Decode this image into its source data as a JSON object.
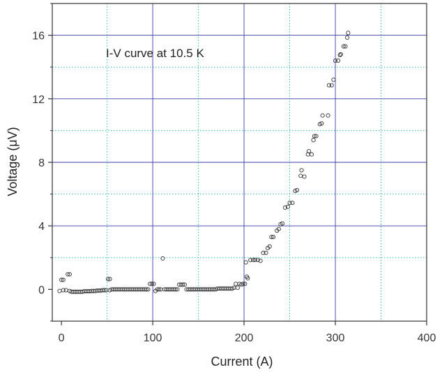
{
  "chart_data": {
    "type": "scatter",
    "title": "",
    "annotation": "I-V curve at 10.5 K",
    "xlabel": "Current (A)",
    "ylabel": "Voltage (μV)",
    "xlim": [
      -10,
      400
    ],
    "ylim": [
      -2,
      18
    ],
    "xticks": [
      0,
      100,
      200,
      300,
      400
    ],
    "yticks": [
      0,
      4,
      8,
      12,
      16
    ],
    "major_grid_x": [
      100,
      200,
      300
    ],
    "major_grid_y": [
      4,
      8,
      12,
      16
    ],
    "minor_grid_x": [
      50,
      150,
      250,
      350
    ],
    "minor_grid_y": [
      2,
      6,
      10,
      14
    ],
    "grid": true,
    "colors": {
      "major_grid": "#3b3ba8",
      "minor_grid": "#36b8a8",
      "marker": "#333333",
      "axis": "#333333"
    },
    "marker": "open-circle",
    "series": [
      {
        "points": [
          [
            -2,
            -0.1
          ],
          [
            0,
            0.6
          ],
          [
            2,
            0.6
          ],
          [
            2,
            -0.05
          ],
          [
            5,
            -0.05
          ],
          [
            7,
            0.95
          ],
          [
            9,
            0.95
          ],
          [
            9,
            -0.1
          ],
          [
            11,
            -0.15
          ],
          [
            13,
            -0.15
          ],
          [
            15,
            -0.15
          ],
          [
            17,
            -0.15
          ],
          [
            19,
            -0.15
          ],
          [
            21,
            -0.15
          ],
          [
            23,
            -0.15
          ],
          [
            25,
            -0.12
          ],
          [
            27,
            -0.12
          ],
          [
            29,
            -0.12
          ],
          [
            31,
            -0.12
          ],
          [
            33,
            -0.1
          ],
          [
            35,
            -0.1
          ],
          [
            37,
            -0.1
          ],
          [
            39,
            -0.08
          ],
          [
            41,
            -0.08
          ],
          [
            43,
            -0.08
          ],
          [
            45,
            -0.05
          ],
          [
            47,
            -0.05
          ],
          [
            49,
            -0.05
          ],
          [
            51,
            0.65
          ],
          [
            53,
            0.65
          ],
          [
            53,
            -0.05
          ],
          [
            55,
            0.0
          ],
          [
            57,
            0.0
          ],
          [
            59,
            0.0
          ],
          [
            61,
            0.0
          ],
          [
            63,
            0.0
          ],
          [
            65,
            0.0
          ],
          [
            67,
            0.0
          ],
          [
            69,
            0.0
          ],
          [
            71,
            0.0
          ],
          [
            73,
            0.0
          ],
          [
            75,
            0.0
          ],
          [
            77,
            0.0
          ],
          [
            79,
            0.0
          ],
          [
            81,
            0.0
          ],
          [
            83,
            0.0
          ],
          [
            85,
            0.0
          ],
          [
            87,
            0.0
          ],
          [
            89,
            0.0
          ],
          [
            91,
            0.0
          ],
          [
            93,
            0.0
          ],
          [
            95,
            0.0
          ],
          [
            97,
            0.35
          ],
          [
            99,
            0.35
          ],
          [
            101,
            0.35
          ],
          [
            103,
            -0.1
          ],
          [
            105,
            0.0
          ],
          [
            107,
            0.0
          ],
          [
            109,
            0.0
          ],
          [
            111,
            1.95
          ],
          [
            113,
            0.0
          ],
          [
            115,
            0.0
          ],
          [
            117,
            0.0
          ],
          [
            119,
            0.0
          ],
          [
            121,
            0.0
          ],
          [
            123,
            0.0
          ],
          [
            125,
            0.0
          ],
          [
            127,
            0.0
          ],
          [
            129,
            0.3
          ],
          [
            131,
            0.3
          ],
          [
            133,
            0.3
          ],
          [
            135,
            0.3
          ],
          [
            137,
            0.0
          ],
          [
            139,
            0.0
          ],
          [
            141,
            0.0
          ],
          [
            143,
            0.0
          ],
          [
            145,
            0.0
          ],
          [
            147,
            0.0
          ],
          [
            149,
            0.0
          ],
          [
            151,
            0.0
          ],
          [
            153,
            0.0
          ],
          [
            155,
            0.0
          ],
          [
            157,
            0.0
          ],
          [
            159,
            0.0
          ],
          [
            161,
            0.0
          ],
          [
            163,
            0.0
          ],
          [
            165,
            0.0
          ],
          [
            167,
            0.0
          ],
          [
            169,
            0.0
          ],
          [
            171,
            0.05
          ],
          [
            173,
            0.05
          ],
          [
            175,
            0.05
          ],
          [
            177,
            0.05
          ],
          [
            179,
            0.05
          ],
          [
            181,
            0.05
          ],
          [
            183,
            0.05
          ],
          [
            185,
            0.05
          ],
          [
            187,
            0.05
          ],
          [
            189,
            0.1
          ],
          [
            191,
            0.35
          ],
          [
            193,
            0.1
          ],
          [
            195,
            0.35
          ],
          [
            197,
            0.3
          ],
          [
            199,
            0.35
          ],
          [
            201,
            0.35
          ],
          [
            202,
            1.7
          ],
          [
            203,
            0.8
          ],
          [
            204,
            0.7
          ],
          [
            207,
            1.85
          ],
          [
            210,
            1.85
          ],
          [
            212,
            1.85
          ],
          [
            215,
            1.85
          ],
          [
            218,
            1.8
          ],
          [
            221,
            2.3
          ],
          [
            224,
            2.3
          ],
          [
            226,
            2.6
          ],
          [
            228,
            2.7
          ],
          [
            230,
            3.3
          ],
          [
            232,
            3.3
          ],
          [
            236,
            3.7
          ],
          [
            238,
            3.8
          ],
          [
            240,
            4.1
          ],
          [
            242,
            4.15
          ],
          [
            245,
            5.15
          ],
          [
            248,
            5.2
          ],
          [
            250,
            5.45
          ],
          [
            253,
            5.45
          ],
          [
            256,
            6.2
          ],
          [
            258,
            6.25
          ],
          [
            262,
            7.15
          ],
          [
            263,
            7.5
          ],
          [
            266,
            7.1
          ],
          [
            270,
            8.5
          ],
          [
            271,
            8.7
          ],
          [
            274,
            8.5
          ],
          [
            276,
            9.4
          ],
          [
            277,
            9.65
          ],
          [
            279,
            9.65
          ],
          [
            283,
            10.4
          ],
          [
            285,
            10.45
          ],
          [
            286,
            10.95
          ],
          [
            292,
            10.95
          ],
          [
            293,
            12.85
          ],
          [
            296,
            12.85
          ],
          [
            298,
            13.2
          ],
          [
            300,
            14.4
          ],
          [
            303,
            14.4
          ],
          [
            305,
            14.75
          ],
          [
            306,
            14.8
          ],
          [
            309,
            15.3
          ],
          [
            311,
            15.3
          ],
          [
            313,
            15.85
          ],
          [
            314,
            16.15
          ]
        ]
      }
    ]
  }
}
